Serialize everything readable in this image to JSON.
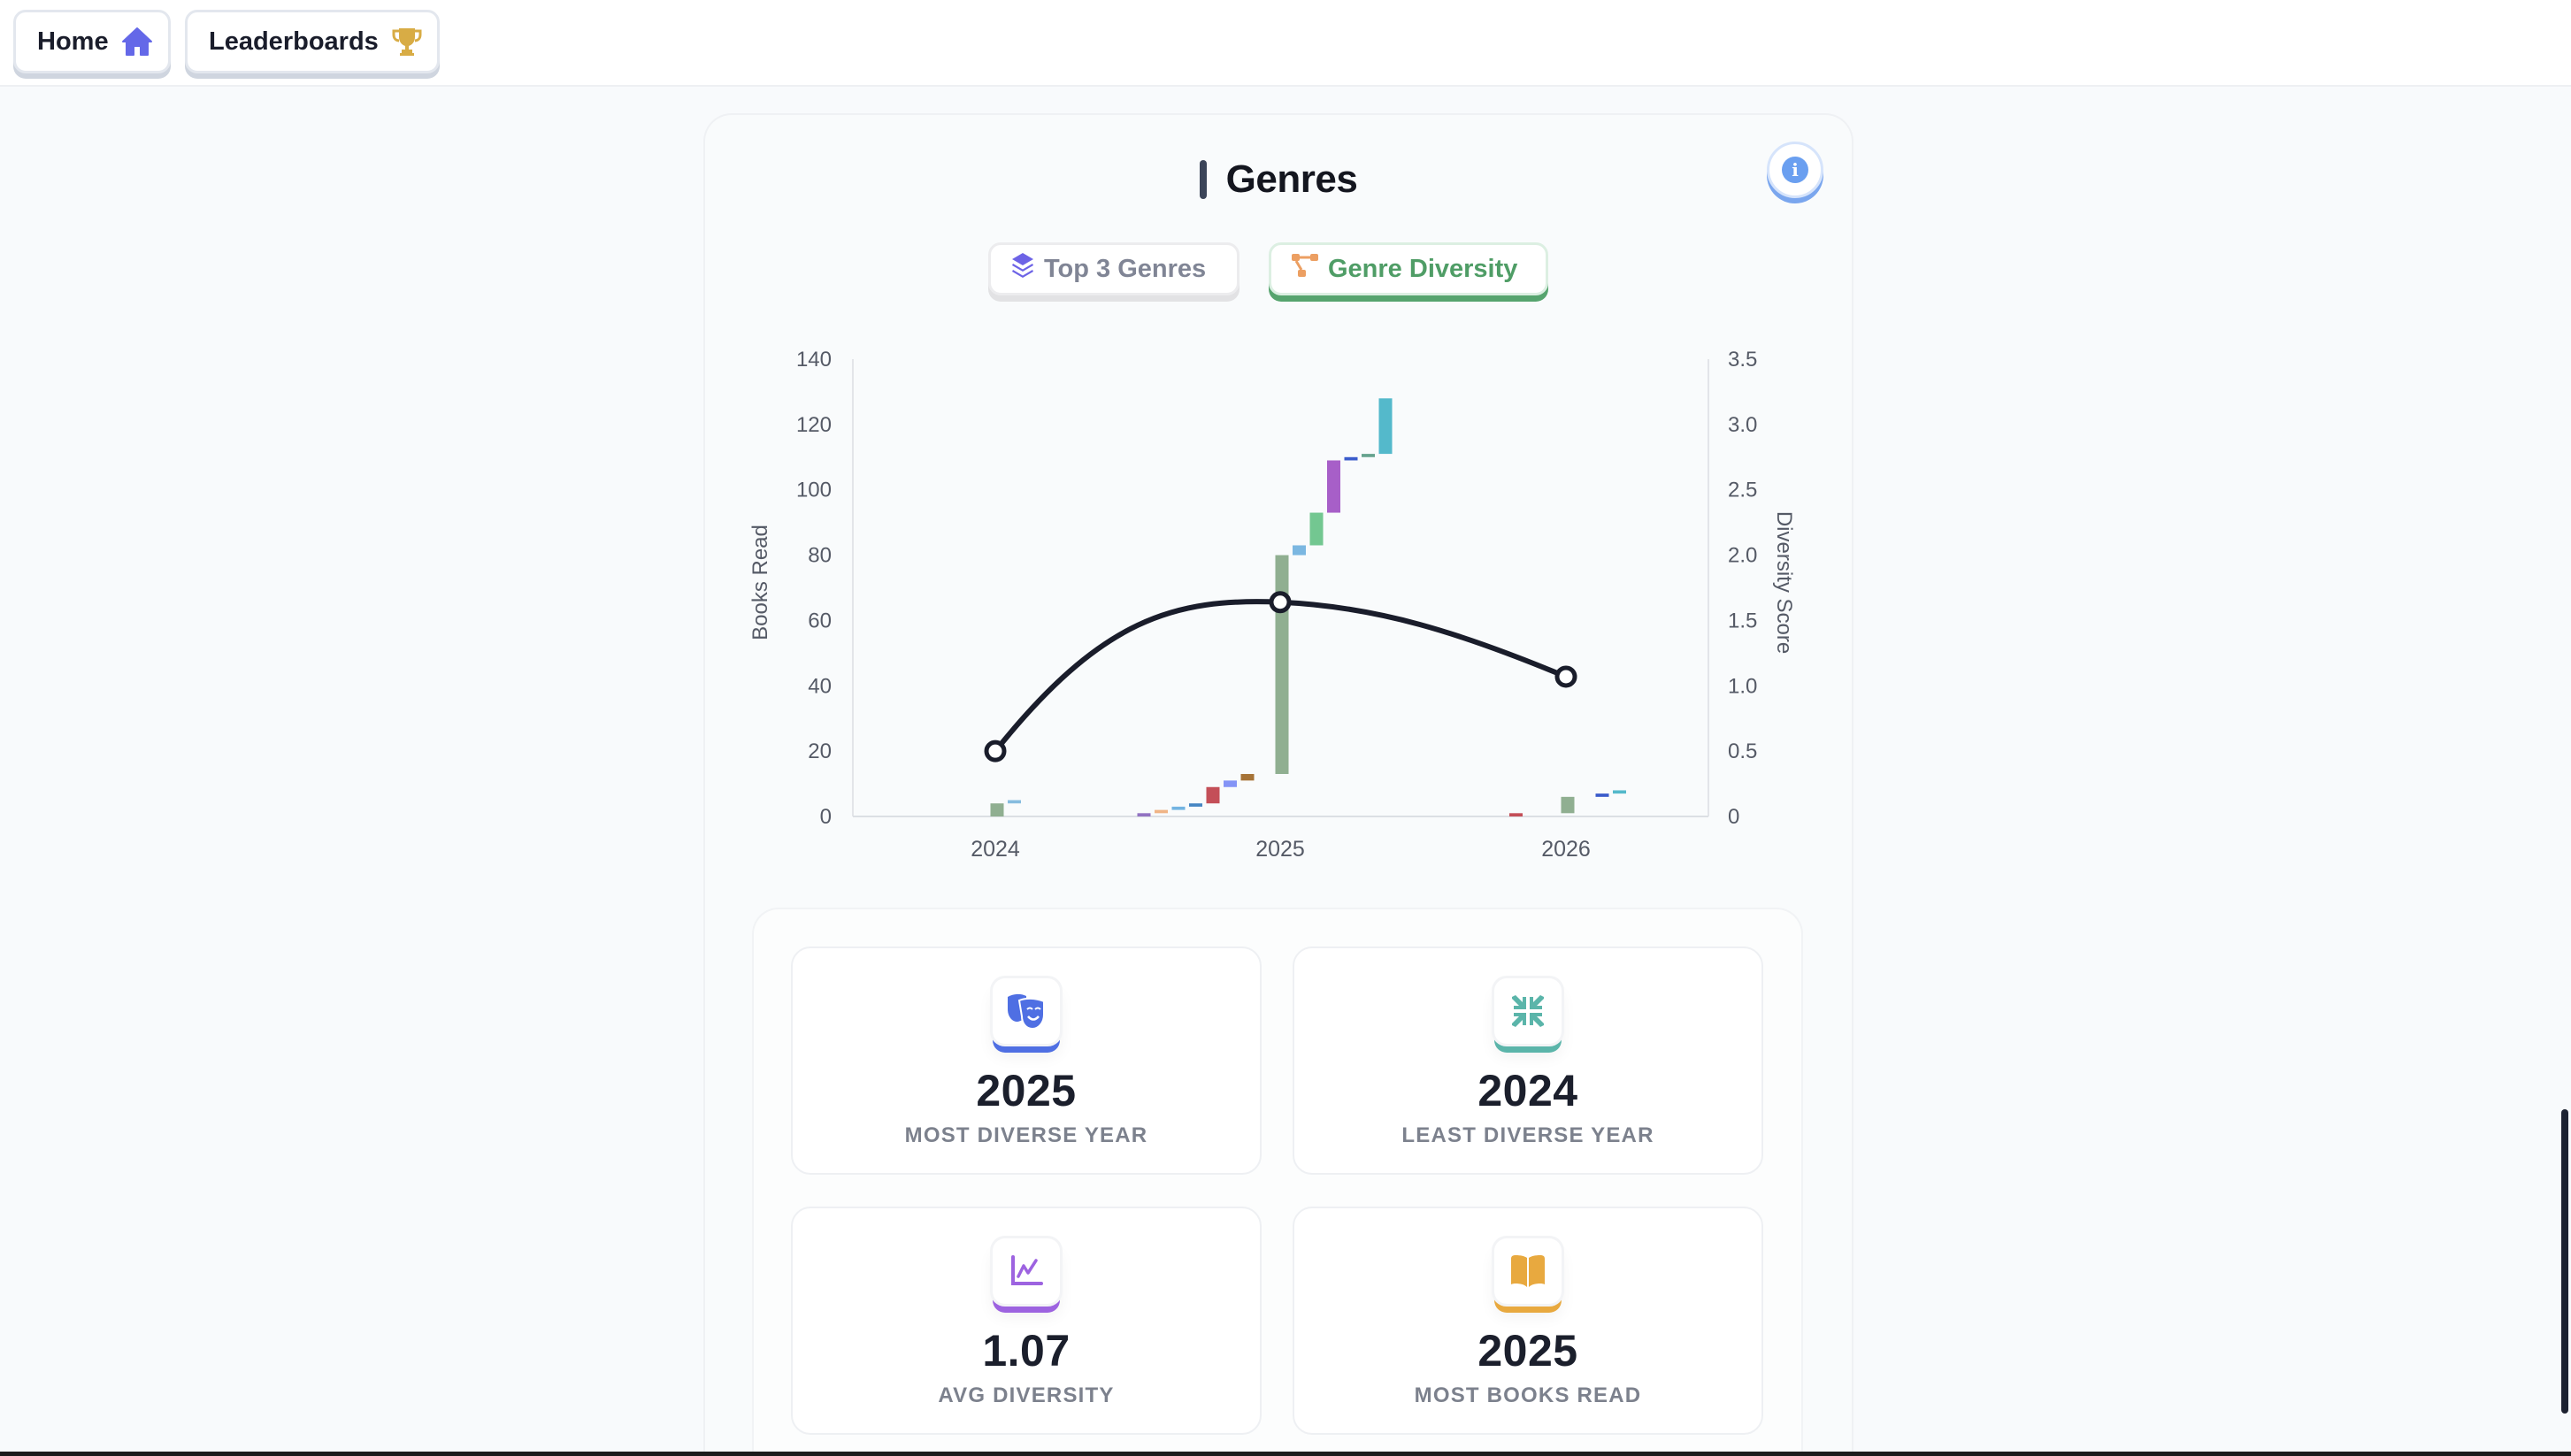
{
  "nav": {
    "home_label": "Home",
    "home_icon": "home-icon",
    "leaderboards_label": "Leaderboards",
    "leaderboards_icon": "trophy-icon"
  },
  "section": {
    "title": "Genres",
    "info_icon": "info-icon"
  },
  "tabs": [
    {
      "label": "Top 3 Genres",
      "icon": "layers-icon",
      "active": false
    },
    {
      "label": "Genre Diversity",
      "icon": "diagram-icon",
      "active": true
    }
  ],
  "colors": {
    "accent_green": "#56a46e",
    "line": "#1a1d2b",
    "most_diverse": "#4f6fe3",
    "least_diverse": "#5bb5aa",
    "avg_diversity": "#9d63e0",
    "most_books": "#e8a93f"
  },
  "chart_data": {
    "type": "bar",
    "subtype": "floating stacked bars (waterfall-style per genre) with line overlay",
    "title": "",
    "xlabel": "",
    "ylabel": "Books Read",
    "y2label": "Diversity Score",
    "categories": [
      "2024",
      "2025",
      "2026"
    ],
    "ylim": [
      0,
      140
    ],
    "yticks": [
      0,
      20,
      40,
      60,
      80,
      100,
      120,
      140
    ],
    "y2lim": [
      0,
      3.5
    ],
    "y2ticks": [
      "0",
      "0.5",
      "1.0",
      "1.5",
      "2.0",
      "2.5",
      "3.0",
      "3.5"
    ],
    "grid": false,
    "legend": "none",
    "bars": [
      {
        "year": "2024",
        "slot": 0,
        "from": 0,
        "to": 4,
        "color": "#8aab8b"
      },
      {
        "year": "2024",
        "slot": 1,
        "from": 4,
        "to": 5,
        "color": "#7fb8dd"
      },
      {
        "year": "2025",
        "slot": -8,
        "from": 0,
        "to": 1,
        "color": "#8c6cbf"
      },
      {
        "year": "2025",
        "slot": -7,
        "from": 1,
        "to": 2,
        "color": "#efb07f"
      },
      {
        "year": "2025",
        "slot": -6,
        "from": 2,
        "to": 3,
        "color": "#6cb0e0"
      },
      {
        "year": "2025",
        "slot": -5,
        "from": 3,
        "to": 4,
        "color": "#3c7fc0"
      },
      {
        "year": "2025",
        "slot": -4,
        "from": 4,
        "to": 9,
        "color": "#c1464f"
      },
      {
        "year": "2025",
        "slot": -3,
        "from": 9,
        "to": 11,
        "color": "#7d8ef5"
      },
      {
        "year": "2025",
        "slot": -2,
        "from": 11,
        "to": 13,
        "color": "#a16b2c"
      },
      {
        "year": "2025",
        "slot": 0,
        "from": 13,
        "to": 80,
        "color": "#8aab8b"
      },
      {
        "year": "2025",
        "slot": 1,
        "from": 80,
        "to": 83,
        "color": "#74b3df"
      },
      {
        "year": "2025",
        "slot": 2,
        "from": 83,
        "to": 93,
        "color": "#6cc48b"
      },
      {
        "year": "2025",
        "slot": 3,
        "from": 93,
        "to": 109,
        "color": "#a256c5"
      },
      {
        "year": "2025",
        "slot": 4,
        "from": 109,
        "to": 110,
        "color": "#2f52c8"
      },
      {
        "year": "2025",
        "slot": 5,
        "from": 110,
        "to": 111,
        "color": "#5e9e88"
      },
      {
        "year": "2025",
        "slot": 6,
        "from": 111,
        "to": 128,
        "color": "#4bb5c8"
      },
      {
        "year": "2026",
        "slot": -3,
        "from": 0,
        "to": 1,
        "color": "#c1464f"
      },
      {
        "year": "2026",
        "slot": 0,
        "from": 1,
        "to": 6,
        "color": "#8aab8b"
      },
      {
        "year": "2026",
        "slot": 2,
        "from": 6,
        "to": 7,
        "color": "#2f52c8"
      },
      {
        "year": "2026",
        "slot": 3,
        "from": 7,
        "to": 8,
        "color": "#4bb5c8"
      }
    ],
    "series": [
      {
        "name": "Diversity Score",
        "type": "line",
        "axis": "y2",
        "values": [
          0.5,
          1.64,
          1.07
        ]
      }
    ]
  },
  "stats": [
    {
      "value": "2025",
      "label": "MOST DIVERSE YEAR",
      "icon": "theater-masks-icon"
    },
    {
      "value": "2024",
      "label": "LEAST DIVERSE YEAR",
      "icon": "compress-arrows-icon"
    },
    {
      "value": "1.07",
      "label": "AVG DIVERSITY",
      "icon": "line-chart-icon"
    },
    {
      "value": "2025",
      "label": "MOST BOOKS READ",
      "icon": "open-book-icon"
    }
  ]
}
